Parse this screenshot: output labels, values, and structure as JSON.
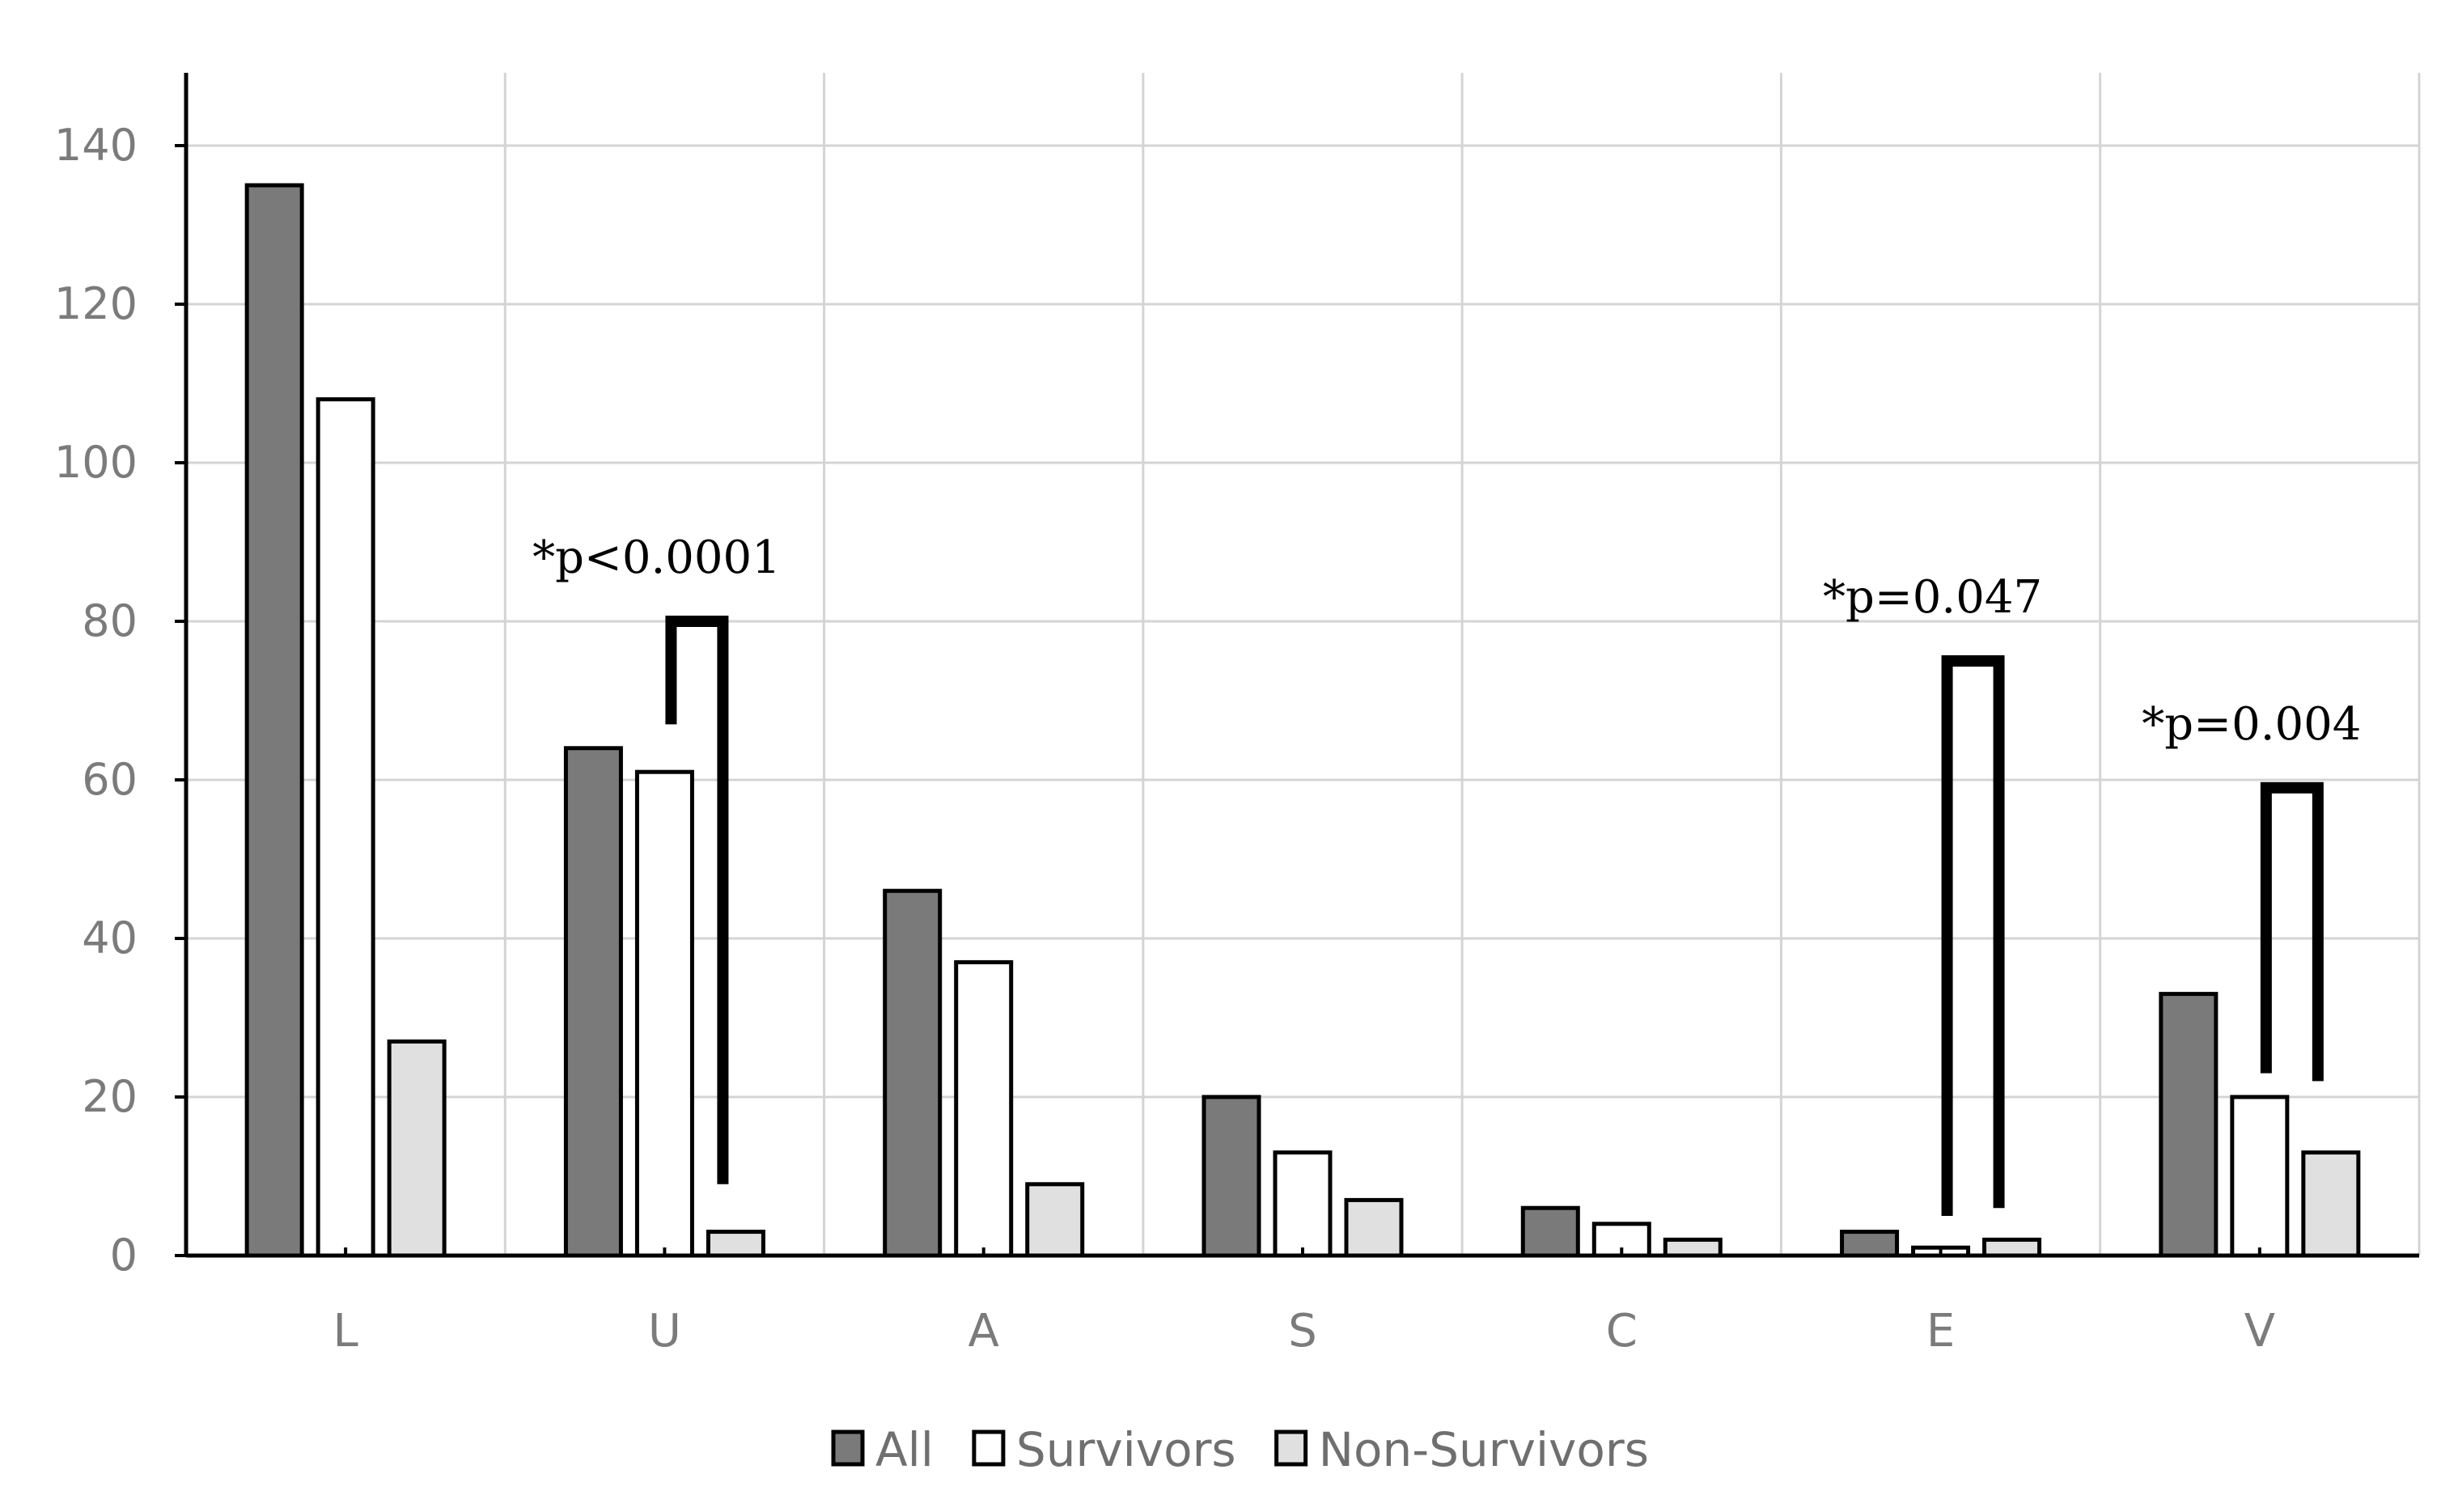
{
  "chart_data": {
    "type": "bar",
    "categories": [
      "L",
      "U",
      "A",
      "S",
      "C",
      "E",
      "V"
    ],
    "series": [
      {
        "name": "All",
        "values": [
          135,
          64,
          46,
          20,
          6,
          3,
          33
        ],
        "color": "#7a7a7a"
      },
      {
        "name": "Survivors",
        "values": [
          108,
          61,
          37,
          13,
          4,
          1,
          20
        ],
        "color": "#ffffff"
      },
      {
        "name": "Non-Survivors",
        "values": [
          27,
          3,
          9,
          7,
          2,
          2,
          13
        ],
        "color": "#e0e0e0"
      }
    ],
    "ylim": [
      0,
      150
    ],
    "yticks": [
      0,
      20,
      40,
      60,
      80,
      100,
      120,
      140
    ],
    "ytick_labels": [
      "0",
      "20",
      "40",
      "60",
      "80",
      "100",
      "120",
      "140"
    ],
    "grid": true,
    "legend": {
      "placement": "bottom-center"
    },
    "annotations": [
      {
        "text": "*p<0.0001",
        "category": "U",
        "bracket_top": 80,
        "left_end": 67,
        "right_end": 9
      },
      {
        "text": "*p=0.047",
        "category": "E",
        "bracket_top": 75,
        "left_end": 5,
        "right_end": 6
      },
      {
        "text": "*p=0.004",
        "category": "V",
        "bracket_top": 59,
        "left_end": 23,
        "right_end": 22
      }
    ],
    "colors": {
      "grid": "#d4d4d4",
      "axis": "#000000",
      "bar_outline": "#000000"
    }
  }
}
